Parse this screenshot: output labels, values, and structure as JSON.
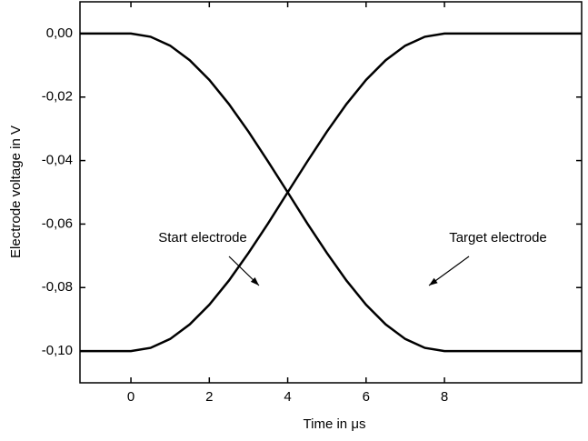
{
  "chart_data": {
    "type": "line",
    "xlabel": "Time in μs",
    "ylabel": "Electrode voltage in V",
    "x": [
      -1.3,
      0,
      0.5,
      1,
      1.5,
      2,
      2.5,
      3,
      3.5,
      4,
      4.5,
      5,
      5.5,
      6,
      6.5,
      7,
      7.5,
      8,
      11.5
    ],
    "series": [
      {
        "name": "Start electrode",
        "color": "#000000",
        "values": [
          0,
          0,
          -0.001,
          -0.0038,
          -0.0084,
          -0.0146,
          -0.0222,
          -0.0309,
          -0.0403,
          -0.05,
          -0.0598,
          -0.0691,
          -0.0778,
          -0.0854,
          -0.0916,
          -0.0962,
          -0.099,
          -0.1,
          -0.1
        ]
      },
      {
        "name": "Target electrode",
        "color": "#000000",
        "values": [
          -0.1,
          -0.1,
          -0.099,
          -0.0962,
          -0.0916,
          -0.0854,
          -0.0778,
          -0.0691,
          -0.0598,
          -0.05,
          -0.0403,
          -0.0309,
          -0.0222,
          -0.0146,
          -0.0084,
          -0.0038,
          -0.001,
          0,
          0
        ]
      }
    ],
    "xlim": [
      -1.3,
      11.5
    ],
    "xticks": [
      0,
      2,
      4,
      6,
      8
    ],
    "ylim": [
      -0.11,
      0.01
    ],
    "yticks": [
      {
        "value": 0,
        "label": "0,00"
      },
      {
        "value": -0.02,
        "label": "-0,02"
      },
      {
        "value": -0.04,
        "label": "-0,04"
      },
      {
        "value": -0.06,
        "label": "-0,06"
      },
      {
        "value": -0.08,
        "label": "-0,08"
      },
      {
        "value": -0.1,
        "label": "-0,10"
      }
    ],
    "grid": false
  }
}
